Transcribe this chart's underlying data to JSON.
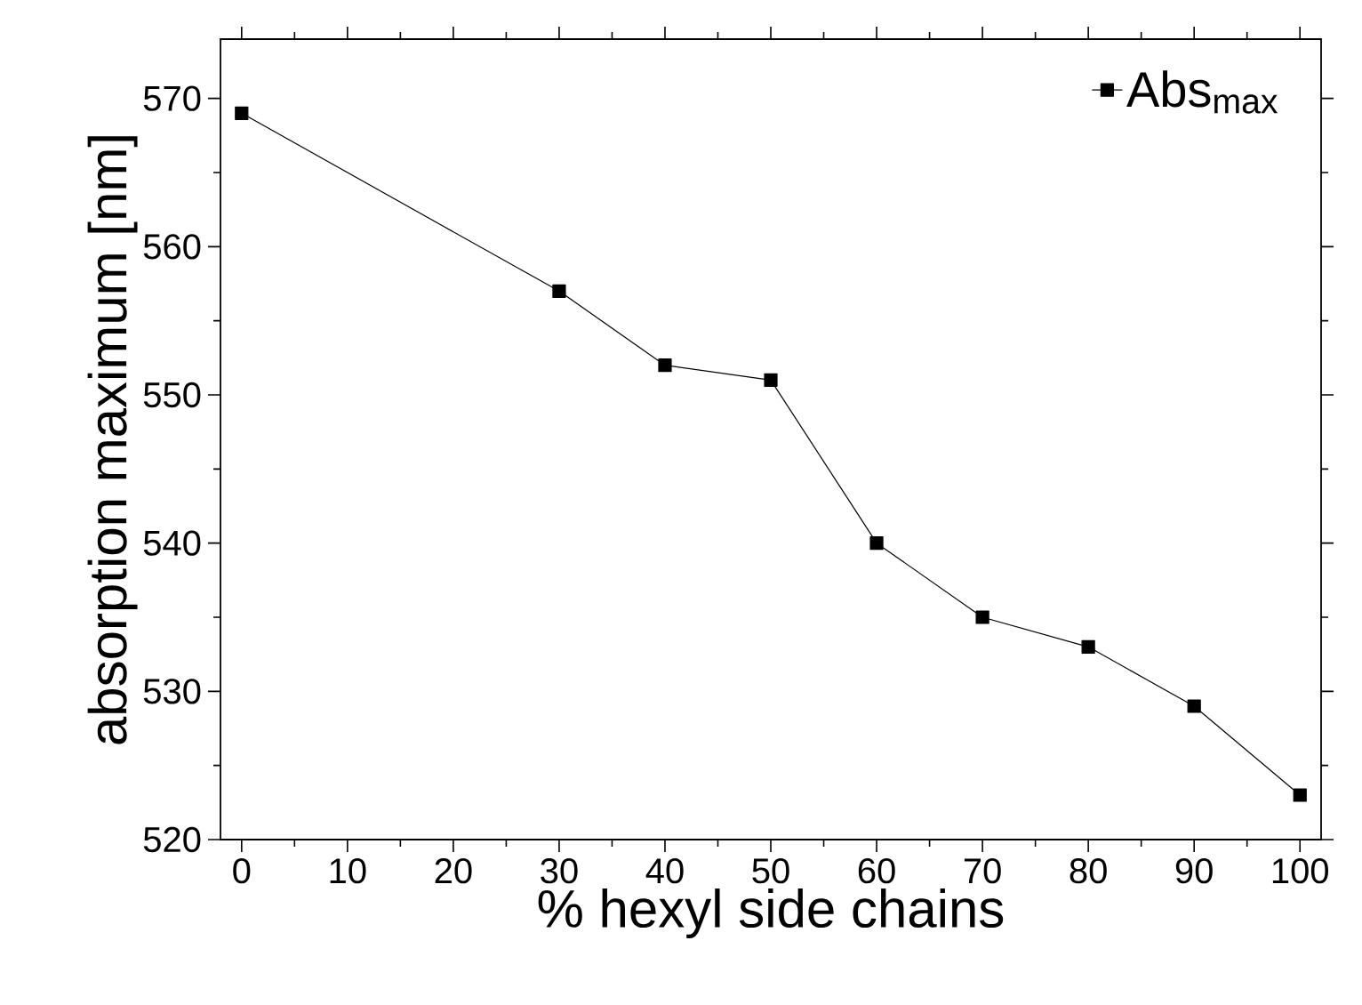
{
  "chart_data": {
    "type": "line",
    "xlabel": "% hexyl side chains",
    "ylabel": "absorption maximum [nm]",
    "x": [
      0,
      30,
      40,
      50,
      60,
      70,
      80,
      90,
      100
    ],
    "series": [
      {
        "name": "Abs$_{max}$",
        "color": "#000000",
        "values": [
          569,
          557,
          552,
          551,
          540,
          535,
          533,
          529,
          523
        ]
      }
    ],
    "xlim": [
      -2,
      102
    ],
    "xticks": [
      0,
      10,
      20,
      30,
      40,
      50,
      60,
      70,
      80,
      90,
      100
    ],
    "ylim": [
      520,
      574
    ],
    "yticks": [
      520,
      530,
      540,
      550,
      560,
      570
    ],
    "marker": "square",
    "line_style": "solid",
    "legend": "top right",
    "grid": false
  }
}
